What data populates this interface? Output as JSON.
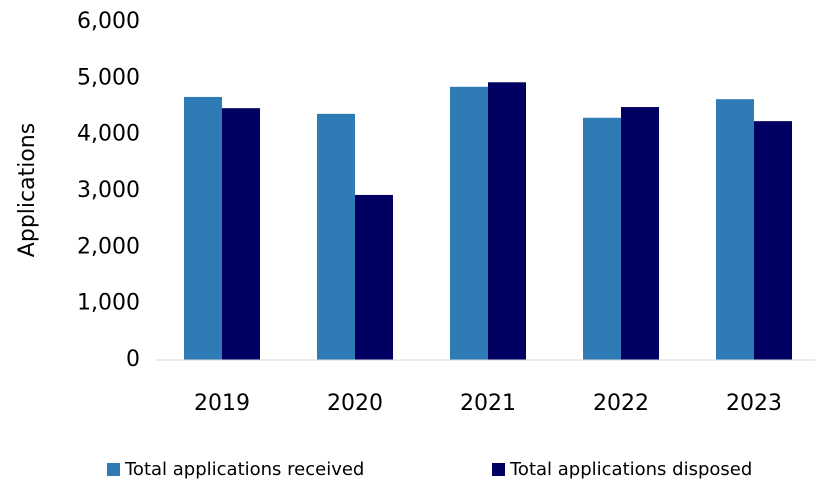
{
  "chart_data": {
    "type": "bar",
    "y_label": "Applications",
    "categories": [
      "2019",
      "2020",
      "2021",
      "2022",
      "2023"
    ],
    "series": [
      {
        "name": "Total applications received",
        "color": "#2e7bb6",
        "values": [
          4670,
          4370,
          4850,
          4300,
          4630
        ]
      },
      {
        "name": "Total applications disposed",
        "color": "#000062",
        "values": [
          4470,
          2930,
          4930,
          4490,
          4240
        ]
      }
    ],
    "ylim": [
      0,
      6000
    ],
    "yticks": [
      0,
      {
        "value": 1000,
        "label": "1,000"
      },
      {
        "value": 2000,
        "label": "2,000"
      },
      {
        "value": 3000,
        "label": "3,000"
      },
      {
        "value": 4000,
        "label": "4,000"
      },
      {
        "value": 5000,
        "label": "5,000"
      },
      {
        "value": 6000,
        "label": "6,000"
      }
    ],
    "grid": false
  }
}
